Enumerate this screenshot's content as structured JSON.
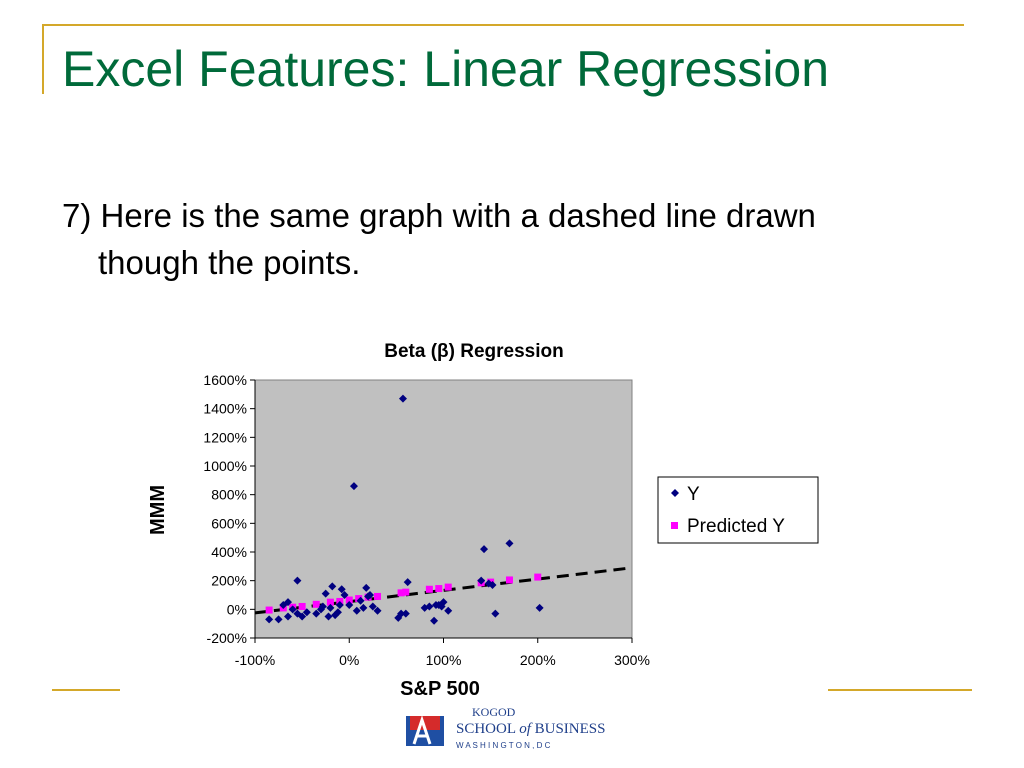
{
  "slide": {
    "title": "Excel Features: Linear Regression",
    "body": "7) Here is the same graph with a dashed line drawn though the points."
  },
  "logo": {
    "line1": "KOGOD",
    "line2a": "SCHOOL ",
    "line2b": "of",
    "line2c": " BUSINESS",
    "line3": "W A S H I N G T O N ,  D C"
  },
  "colors": {
    "title": "#006a3a",
    "frame": "#d4a82a",
    "plot_bg": "#c0c0c0",
    "y_marker": "#000080",
    "predicted_marker": "#ff00ff"
  },
  "chart_data": {
    "type": "scatter",
    "title": "Beta (β) Regression",
    "xlabel": "S&P 500",
    "ylabel": "MMM",
    "xlim": [
      -100,
      300
    ],
    "ylim": [
      -200,
      1600
    ],
    "x_ticks": [
      "-100%",
      "0%",
      "100%",
      "200%",
      "300%"
    ],
    "y_ticks": [
      "-200%",
      "0%",
      "200%",
      "400%",
      "600%",
      "800%",
      "1000%",
      "1200%",
      "1400%",
      "1600%"
    ],
    "legend_position": "right",
    "grid": false,
    "series": [
      {
        "name": "Y",
        "marker": "diamond",
        "points": [
          [
            -85,
            -70
          ],
          [
            -75,
            -70
          ],
          [
            -70,
            30
          ],
          [
            -65,
            50
          ],
          [
            -65,
            -50
          ],
          [
            -60,
            0
          ],
          [
            -55,
            200
          ],
          [
            -55,
            -30
          ],
          [
            -50,
            -50
          ],
          [
            -45,
            -20
          ],
          [
            -35,
            -30
          ],
          [
            -30,
            0
          ],
          [
            -28,
            20
          ],
          [
            -25,
            110
          ],
          [
            -22,
            -50
          ],
          [
            -20,
            10
          ],
          [
            -18,
            160
          ],
          [
            -15,
            -40
          ],
          [
            -12,
            -20
          ],
          [
            -10,
            30
          ],
          [
            -8,
            140
          ],
          [
            -5,
            100
          ],
          [
            0,
            30
          ],
          [
            5,
            860
          ],
          [
            8,
            -10
          ],
          [
            12,
            60
          ],
          [
            15,
            10
          ],
          [
            18,
            150
          ],
          [
            20,
            90
          ],
          [
            22,
            100
          ],
          [
            25,
            20
          ],
          [
            30,
            -10
          ],
          [
            52,
            -60
          ],
          [
            55,
            -30
          ],
          [
            57,
            1470
          ],
          [
            60,
            -30
          ],
          [
            62,
            190
          ],
          [
            80,
            10
          ],
          [
            85,
            20
          ],
          [
            90,
            -80
          ],
          [
            92,
            30
          ],
          [
            95,
            30
          ],
          [
            98,
            20
          ],
          [
            100,
            50
          ],
          [
            105,
            -10
          ],
          [
            140,
            200
          ],
          [
            143,
            420
          ],
          [
            148,
            180
          ],
          [
            152,
            170
          ],
          [
            155,
            -30
          ],
          [
            170,
            460
          ],
          [
            202,
            10
          ]
        ]
      },
      {
        "name": "Predicted Y",
        "marker": "square",
        "points": [
          [
            -85,
            -5
          ],
          [
            -70,
            10
          ],
          [
            -60,
            15
          ],
          [
            -50,
            20
          ],
          [
            -35,
            35
          ],
          [
            -20,
            50
          ],
          [
            -10,
            55
          ],
          [
            0,
            65
          ],
          [
            10,
            75
          ],
          [
            20,
            85
          ],
          [
            30,
            90
          ],
          [
            55,
            115
          ],
          [
            60,
            120
          ],
          [
            85,
            140
          ],
          [
            95,
            145
          ],
          [
            105,
            155
          ],
          [
            140,
            185
          ],
          [
            150,
            190
          ],
          [
            170,
            205
          ],
          [
            200,
            225
          ]
        ]
      }
    ],
    "trendline": {
      "style": "dashed",
      "x": [
        -100,
        300
      ],
      "y": [
        -25,
        290
      ]
    }
  }
}
